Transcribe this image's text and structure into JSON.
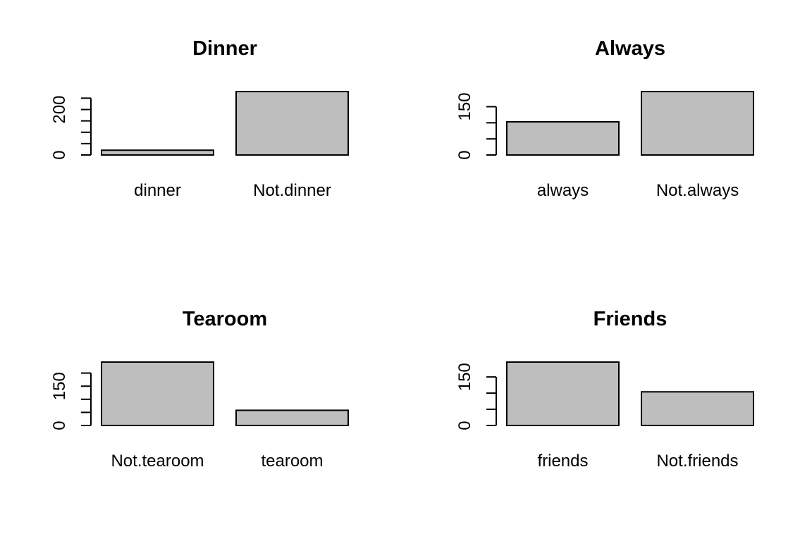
{
  "chart_data": [
    {
      "type": "bar",
      "title": "Dinner",
      "categories": [
        "dinner",
        "Not.dinner"
      ],
      "values": [
        21,
        279
      ],
      "ylim": [
        0,
        279
      ],
      "ticks": [
        0,
        200
      ],
      "minor_step": 50,
      "bar_color": "#bebebe"
    },
    {
      "type": "bar",
      "title": "Always",
      "categories": [
        "always",
        "Not.always"
      ],
      "values": [
        103,
        197
      ],
      "ylim": [
        0,
        197
      ],
      "ticks": [
        0,
        150
      ],
      "minor_step": 50,
      "bar_color": "#bebebe"
    },
    {
      "type": "bar",
      "title": "Tearoom",
      "categories": [
        "Not.tearoom",
        "tearoom"
      ],
      "values": [
        242,
        58
      ],
      "ylim": [
        0,
        242
      ],
      "ticks": [
        0,
        150
      ],
      "minor_step": 50,
      "bar_color": "#bebebe"
    },
    {
      "type": "bar",
      "title": "Friends",
      "categories": [
        "friends",
        "Not.friends"
      ],
      "values": [
        196,
        104
      ],
      "ylim": [
        0,
        196
      ],
      "ticks": [
        0,
        150
      ],
      "minor_step": 50,
      "bar_color": "#bebebe"
    }
  ]
}
